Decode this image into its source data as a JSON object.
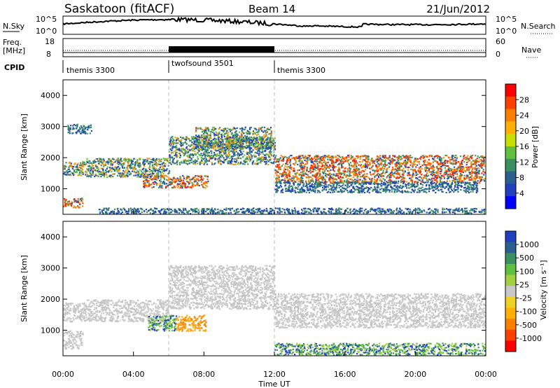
{
  "header": {
    "station": "Saskatoon (fitACF)",
    "beam": "Beam 14",
    "date": "21/Jun/2012"
  },
  "noise_panel": {
    "left_label": "N.Sky",
    "right_label": "N.Search",
    "left_ticks": [
      "10^5",
      "10^0"
    ],
    "right_ticks": [
      "10^5",
      "10^0"
    ]
  },
  "freq_panel": {
    "left_label_1": "Freq.",
    "left_label_2": "[MHz]",
    "right_label": "Nave",
    "left_ticks": [
      "18",
      "8"
    ],
    "right_ticks": [
      "60",
      "0"
    ]
  },
  "cpid_panel": {
    "label": "CPID",
    "segments": [
      {
        "name": "themis 3300",
        "start_hour": 0,
        "end_hour": 6
      },
      {
        "name": "twofsound 3501",
        "start_hour": 6,
        "end_hour": 12
      },
      {
        "name": "themis 3300",
        "start_hour": 12,
        "end_hour": 24
      }
    ]
  },
  "power_panel": {
    "ylabel": "Slant Range [km]",
    "cbar_label": "Power [dB]",
    "cbar_ticks": [
      "28",
      "24",
      "20",
      "16",
      "12",
      "8",
      "4"
    ],
    "cbar_colors": [
      "#ff0000",
      "#ff4000",
      "#ff8000",
      "#ffb000",
      "#c8e000",
      "#60c040",
      "#3a9060",
      "#2a6090",
      "#2040c0",
      "#0000ff"
    ]
  },
  "velocity_panel": {
    "ylabel": "Slant Range [km]",
    "cbar_label": "Velocity [m s⁻¹]",
    "cbar_ticks": [
      "1000",
      "500",
      "100",
      "25",
      "-25",
      "-100",
      "-500",
      "-1000"
    ],
    "cbar_colors": [
      "#2040c0",
      "#2a6090",
      "#3a9060",
      "#60c040",
      "#a0d040",
      "#c8c8c8",
      "#f0d020",
      "#ffb000",
      "#ff8000",
      "#ff4000",
      "#ff0000"
    ]
  },
  "x_axis": {
    "label": "Time UT",
    "ticks": [
      "00:00",
      "04:00",
      "08:00",
      "12:00",
      "16:00",
      "20:00",
      "00:00"
    ]
  },
  "chart_data": {
    "type": "heatmap",
    "x_range_hours": [
      0,
      24
    ],
    "y_range_km": [
      180,
      4500
    ],
    "y_ticks_km": [
      1000,
      2000,
      3000,
      4000
    ],
    "mode_change_hours": [
      6,
      12
    ],
    "power_echo_bands": [
      {
        "t0": 0,
        "t1": 1.3,
        "r0": 1450,
        "r1": 1900,
        "level": "medium"
      },
      {
        "t0": 0,
        "t1": 1.1,
        "r0": 420,
        "r1": 720,
        "level": "high"
      },
      {
        "t0": 0.2,
        "t1": 1.6,
        "r0": 2800,
        "r1": 3100,
        "level": "low"
      },
      {
        "t0": 1.3,
        "t1": 6,
        "r0": 1400,
        "r1": 2000,
        "level": "medium"
      },
      {
        "t0": 4.5,
        "t1": 8.2,
        "r0": 1050,
        "r1": 1450,
        "level": "high"
      },
      {
        "t0": 6,
        "t1": 12,
        "r0": 1800,
        "r1": 2700,
        "level": "medium"
      },
      {
        "t0": 7.5,
        "t1": 11.8,
        "r0": 2300,
        "r1": 3000,
        "level": "medium"
      },
      {
        "t0": 12,
        "t1": 24,
        "r0": 1200,
        "r1": 2100,
        "level": "high"
      },
      {
        "t0": 12,
        "t1": 23.5,
        "r0": 900,
        "r1": 1250,
        "level": "low"
      },
      {
        "t0": 2,
        "t1": 24,
        "r0": 200,
        "r1": 400,
        "level": "low"
      }
    ],
    "velocity_echo_bands": [
      {
        "t0": 0,
        "t1": 1.3,
        "r0": 1300,
        "r1": 1900,
        "class": "gs"
      },
      {
        "t0": 0,
        "t1": 1.1,
        "r0": 420,
        "r1": 1000,
        "class": "gs"
      },
      {
        "t0": 1.3,
        "t1": 6,
        "r0": 1300,
        "r1": 2000,
        "class": "gs"
      },
      {
        "t0": 4.8,
        "t1": 6.4,
        "r0": 1000,
        "r1": 1500,
        "class": "positive"
      },
      {
        "t0": 6.4,
        "t1": 8.1,
        "r0": 1000,
        "r1": 1500,
        "class": "negative"
      },
      {
        "t0": 6,
        "t1": 12,
        "r0": 1700,
        "r1": 3100,
        "class": "gs"
      },
      {
        "t0": 12,
        "t1": 24,
        "r0": 1100,
        "r1": 2200,
        "class": "gs"
      },
      {
        "t0": 12,
        "t1": 24,
        "r0": 200,
        "r1": 600,
        "class": "positive"
      }
    ]
  }
}
